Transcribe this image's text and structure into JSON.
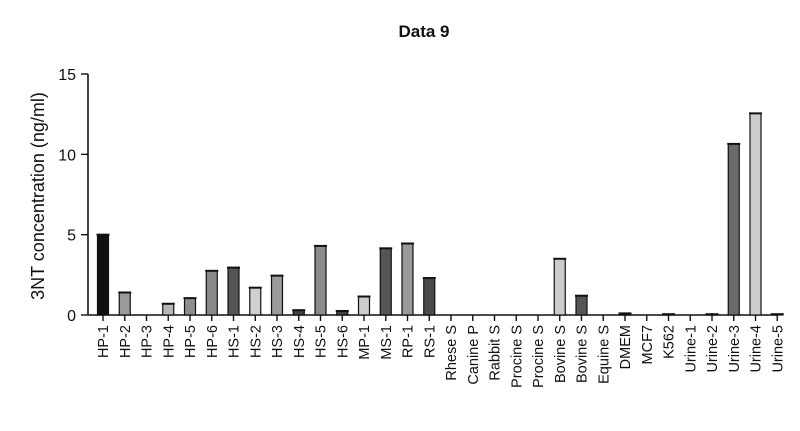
{
  "chart_data": {
    "type": "bar",
    "title": "Data 9",
    "xlabel": "",
    "ylabel": "3NT concentration (ng/ml)",
    "ylim": [
      0,
      15
    ],
    "yticks": [
      0,
      5,
      10,
      15
    ],
    "grid": false,
    "legend": "none",
    "categories": [
      "HP-1",
      "HP-2",
      "HP-3",
      "HP-4",
      "HP-5",
      "HP-6",
      "HS-1",
      "HS-2",
      "HS-3",
      "HS-4",
      "HS-5",
      "HS-6",
      "MP-1",
      "MS-1",
      "RP-1",
      "RS-1",
      "Rhese S",
      "Canine P",
      "Rabbit S",
      "Procine S",
      "Procine S",
      "Bovine S",
      "Bovine S",
      "Equine S",
      "DMEM",
      "MCF7",
      "K562",
      "Urine-1",
      "Urine-2",
      "Urine-3",
      "Urine-4",
      "Urine-5"
    ],
    "values": [
      5.0,
      1.4,
      0,
      0.7,
      1.05,
      2.75,
      2.95,
      1.7,
      2.45,
      0.3,
      4.3,
      0.25,
      1.15,
      4.15,
      4.45,
      2.3,
      0,
      0,
      0,
      0,
      0,
      3.5,
      1.2,
      0,
      0.1,
      0,
      0.05,
      0,
      0.05,
      10.65,
      12.55,
      0.05
    ],
    "colors": [
      "#111111",
      "#9a9a9a",
      "#ffffff",
      "#b8b8b8",
      "#8e8e8e",
      "#8a8a8a",
      "#555555",
      "#cfcfcf",
      "#9a9a9a",
      "#444444",
      "#8a8a8a",
      "#444444",
      "#cccccc",
      "#555555",
      "#999999",
      "#4a4a4a",
      "#ffffff",
      "#ffffff",
      "#ffffff",
      "#ffffff",
      "#ffffff",
      "#cccccc",
      "#555555",
      "#ffffff",
      "#555555",
      "#ffffff",
      "#555555",
      "#ffffff",
      "#555555",
      "#6a6a6a",
      "#cccccc",
      "#555555"
    ]
  }
}
